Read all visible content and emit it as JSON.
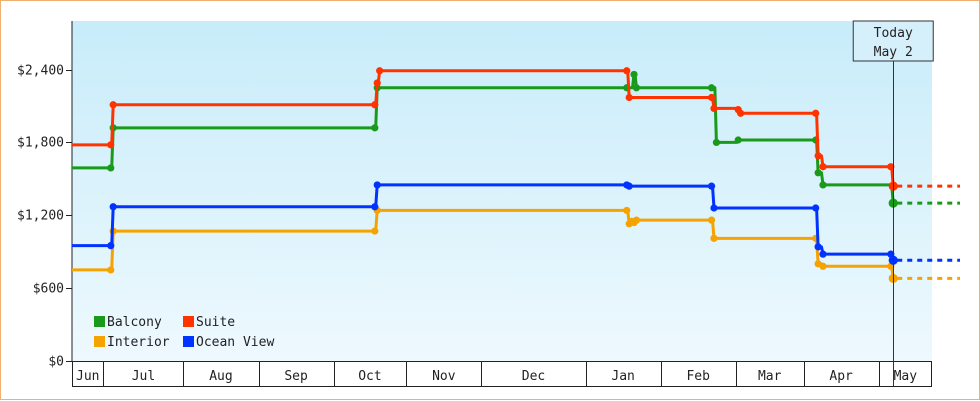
{
  "chart_data": {
    "type": "line",
    "step": true,
    "title": "",
    "xlabel": "",
    "ylabel": "",
    "x_range": [
      "2024-05-28",
      "2025-05-18"
    ],
    "ylim": [
      0,
      2800
    ],
    "y_ticks": [
      0,
      600,
      1200,
      1800,
      2400
    ],
    "y_tick_labels": [
      "$0",
      "$600",
      "$1,200",
      "$1,800",
      "$2,400"
    ],
    "months": [
      {
        "label": "Jun",
        "start": "2024-05-28",
        "end": "2024-06-10"
      },
      {
        "label": "Jul",
        "start": "2024-06-10",
        "end": "2024-07-13"
      },
      {
        "label": "Aug",
        "start": "2024-07-13",
        "end": "2024-08-13"
      },
      {
        "label": "Sep",
        "start": "2024-08-13",
        "end": "2024-09-13"
      },
      {
        "label": "Oct",
        "start": "2024-09-13",
        "end": "2024-10-13"
      },
      {
        "label": "Nov",
        "start": "2024-10-13",
        "end": "2024-11-13"
      },
      {
        "label": "Dec",
        "start": "2024-11-13",
        "end": "2024-12-26"
      },
      {
        "label": "Jan",
        "start": "2024-12-26",
        "end": "2025-01-26"
      },
      {
        "label": "Feb",
        "start": "2025-01-26",
        "end": "2025-02-26"
      },
      {
        "label": "Mar",
        "start": "2025-02-26",
        "end": "2025-03-26"
      },
      {
        "label": "Apr",
        "start": "2025-03-26",
        "end": "2025-04-26"
      },
      {
        "label": "May",
        "start": "2025-04-26",
        "end": "2025-05-18"
      }
    ],
    "today": {
      "line1": "Today",
      "line2": "May 2",
      "date": "2025-05-02"
    },
    "legend": {
      "position": "bottom-left"
    },
    "grid": false,
    "series": [
      {
        "name": "Balcony",
        "color": "#1a9a1a",
        "points": [
          [
            "2024-05-28",
            1590
          ],
          [
            "2024-06-13",
            1590
          ],
          [
            "2024-06-14",
            1920
          ],
          [
            "2024-09-30",
            1920
          ],
          [
            "2024-10-01",
            2250
          ],
          [
            "2025-01-12",
            2250
          ],
          [
            "2025-01-15",
            2360
          ],
          [
            "2025-01-16",
            2250
          ],
          [
            "2025-02-16",
            2250
          ],
          [
            "2025-02-18",
            1800
          ],
          [
            "2025-02-27",
            1820
          ],
          [
            "2025-03-31",
            1820
          ],
          [
            "2025-04-01",
            1550
          ],
          [
            "2025-04-03",
            1450
          ],
          [
            "2025-05-02",
            1300
          ]
        ],
        "projection": 1300
      },
      {
        "name": "Suite",
        "color": "#ff3300",
        "points": [
          [
            "2024-05-28",
            1780
          ],
          [
            "2024-06-13",
            1780
          ],
          [
            "2024-06-14",
            2110
          ],
          [
            "2024-09-30",
            2110
          ],
          [
            "2024-10-01",
            2290
          ],
          [
            "2024-10-02",
            2390
          ],
          [
            "2025-01-12",
            2390
          ],
          [
            "2025-01-13",
            2170
          ],
          [
            "2025-02-16",
            2170
          ],
          [
            "2025-02-17",
            2080
          ],
          [
            "2025-02-27",
            2070
          ],
          [
            "2025-02-28",
            2040
          ],
          [
            "2025-03-31",
            2040
          ],
          [
            "2025-04-01",
            1690
          ],
          [
            "2025-04-03",
            1600
          ],
          [
            "2025-05-01",
            1600
          ],
          [
            "2025-05-02",
            1440
          ]
        ],
        "projection": 1440
      },
      {
        "name": "Interior",
        "color": "#f5a300",
        "points": [
          [
            "2024-05-28",
            750
          ],
          [
            "2024-06-13",
            750
          ],
          [
            "2024-06-14",
            1070
          ],
          [
            "2024-09-30",
            1070
          ],
          [
            "2024-10-01",
            1240
          ],
          [
            "2025-01-12",
            1240
          ],
          [
            "2025-01-13",
            1130
          ],
          [
            "2025-01-14",
            1150
          ],
          [
            "2025-01-15",
            1140
          ],
          [
            "2025-01-16",
            1160
          ],
          [
            "2025-02-16",
            1160
          ],
          [
            "2025-02-17",
            1010
          ],
          [
            "2025-03-31",
            1010
          ],
          [
            "2025-04-01",
            800
          ],
          [
            "2025-04-03",
            780
          ],
          [
            "2025-05-01",
            780
          ],
          [
            "2025-05-02",
            680
          ]
        ],
        "projection": 680
      },
      {
        "name": "Ocean View",
        "color": "#0033ff",
        "points": [
          [
            "2024-05-28",
            950
          ],
          [
            "2024-06-13",
            950
          ],
          [
            "2024-06-14",
            1270
          ],
          [
            "2024-09-30",
            1270
          ],
          [
            "2024-10-01",
            1450
          ],
          [
            "2025-01-12",
            1450
          ],
          [
            "2025-01-13",
            1440
          ],
          [
            "2025-02-16",
            1440
          ],
          [
            "2025-02-17",
            1260
          ],
          [
            "2025-03-31",
            1260
          ],
          [
            "2025-04-01",
            940
          ],
          [
            "2025-04-03",
            880
          ],
          [
            "2025-05-01",
            880
          ],
          [
            "2025-05-02",
            830
          ]
        ],
        "projection": 830
      }
    ]
  }
}
